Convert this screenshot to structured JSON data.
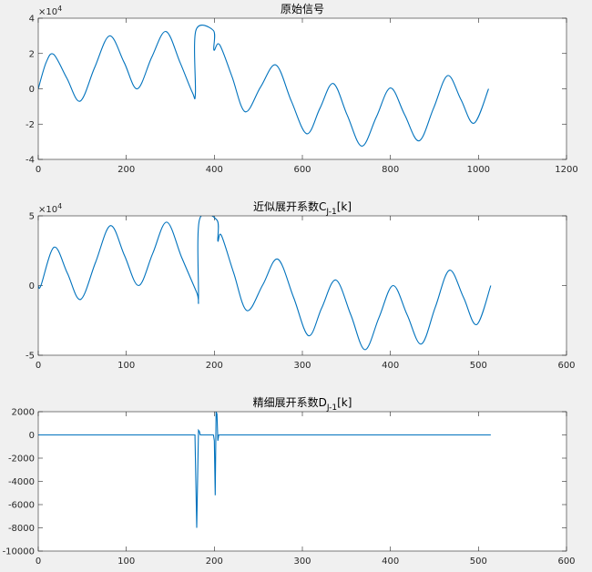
{
  "chart_data": [
    {
      "type": "line",
      "title": "原始信号",
      "color": "#0072bd",
      "y_exponent": {
        "base": "×10",
        "power": "4"
      },
      "xlim": [
        0,
        1200
      ],
      "xticks": [
        0,
        200,
        400,
        600,
        800,
        1000,
        1200
      ],
      "ylim": [
        -4,
        4
      ],
      "yticks": [
        -4,
        -2,
        0,
        2,
        4
      ],
      "x": [
        0,
        18,
        35,
        65,
        95,
        128,
        162,
        195,
        225,
        258,
        290,
        322,
        350,
        357,
        358,
        398,
        399,
        412,
        440,
        470,
        505,
        540,
        575,
        610,
        640,
        670,
        702,
        735,
        768,
        800,
        832,
        865,
        898,
        930,
        960,
        990,
        1023
      ],
      "values": [
        0,
        1.5,
        1.95,
        0.6,
        -0.7,
        1.2,
        3.0,
        1.5,
        0,
        1.8,
        3.25,
        1.5,
        -0.2,
        -0.25,
        3.3,
        3.3,
        2.2,
        2.5,
        0.7,
        -1.3,
        0.1,
        1.35,
        -0.7,
        -2.55,
        -1.1,
        0.3,
        -1.5,
        -3.25,
        -1.6,
        0.05,
        -1.45,
        -2.95,
        -1.1,
        0.75,
        -0.6,
        -1.95,
        0
      ]
    },
    {
      "type": "line",
      "title": "近似展开系数C",
      "title_subscript": "J-1",
      "title_suffix": "[k]",
      "color": "#0072bd",
      "y_exponent": {
        "base": "×10",
        "power": "4"
      },
      "xlim": [
        0,
        600
      ],
      "xticks": [
        0,
        100,
        200,
        300,
        400,
        500,
        600
      ],
      "ylim": [
        -5,
        5
      ],
      "yticks": [
        -5,
        0,
        5
      ],
      "x": [
        0,
        3,
        18,
        33,
        48,
        65,
        82,
        98,
        114,
        130,
        146,
        163,
        180,
        182,
        183,
        203,
        204,
        208,
        222,
        237,
        255,
        272,
        290,
        307,
        322,
        338,
        355,
        371,
        387,
        403,
        419,
        435,
        451,
        467,
        483,
        498,
        514
      ],
      "values": [
        0,
        0,
        2.75,
        0.9,
        -1.0,
        1.65,
        4.3,
        2.15,
        0,
        2.3,
        4.55,
        2.0,
        -0.5,
        -0.9,
        4.7,
        4.7,
        3.2,
        3.6,
        0.9,
        -1.8,
        0.05,
        1.9,
        -0.85,
        -3.6,
        -1.6,
        0.4,
        -2.1,
        -4.6,
        -2.3,
        0,
        -2.1,
        -4.2,
        -1.55,
        1.1,
        -0.85,
        -2.8,
        0
      ]
    },
    {
      "type": "line",
      "title": "精细展开系数D",
      "title_subscript": "J-1",
      "title_suffix": "[k]",
      "color": "#0072bd",
      "straight": true,
      "xlim": [
        0,
        600
      ],
      "xticks": [
        0,
        100,
        200,
        300,
        400,
        500,
        600
      ],
      "ylim": [
        -10000,
        2000
      ],
      "yticks": [
        -10000,
        -8000,
        -6000,
        -4000,
        -2000,
        0,
        2000
      ],
      "x": [
        0,
        178,
        180,
        182,
        183,
        184,
        199,
        200,
        201,
        202,
        203,
        204,
        205,
        514
      ],
      "values": [
        0,
        0,
        -8000,
        400,
        300,
        0,
        0,
        -500,
        -5200,
        2000,
        1800,
        -500,
        0,
        0
      ]
    }
  ]
}
